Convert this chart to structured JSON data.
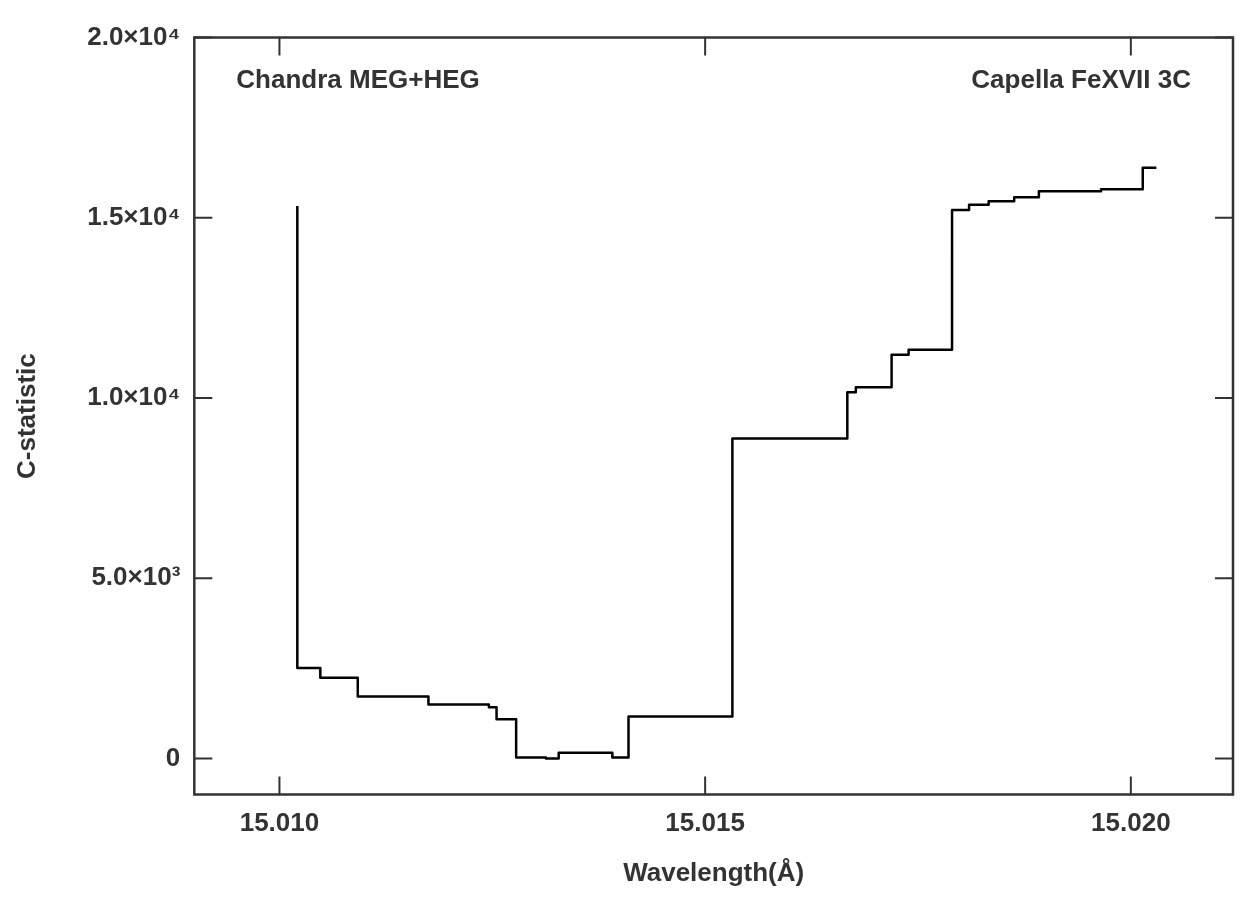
{
  "chart_data": {
    "type": "step",
    "xlabel": "Wavelength(Å)",
    "ylabel": "C-statistic",
    "annotations": [
      "Chandra MEG+HEG",
      "Capella FeXVII 3C"
    ],
    "x": [
      15.01021,
      15.01021,
      15.01048,
      15.01092,
      15.01175,
      15.01246,
      15.01255,
      15.01278,
      15.01313,
      15.01328,
      15.01391,
      15.0141,
      15.01532,
      15.01667,
      15.01677,
      15.01719,
      15.01739,
      15.0179,
      15.0181,
      15.01833,
      15.01863,
      15.01892,
      15.01965,
      15.02014,
      15.0203
    ],
    "series": [
      {
        "color": "#000000",
        "values": [
          15330,
          2510,
          2240,
          1720,
          1500,
          1420,
          1090,
          30,
          0,
          160,
          30,
          1170,
          8880,
          10160,
          10300,
          11200,
          11340,
          15220,
          15360,
          15460,
          15570,
          15740,
          15790,
          16390,
          16390
        ]
      }
    ],
    "xlim": [
      15.009,
      15.0212
    ],
    "xticks": [
      {
        "value": 15.01,
        "label": "15.010"
      },
      {
        "value": 15.015,
        "label": "15.015"
      },
      {
        "value": 15.02,
        "label": "15.020"
      }
    ],
    "ylim": [
      -1000,
      20000
    ],
    "yticks": [
      {
        "value": 0,
        "label": "0"
      },
      {
        "value": 5000,
        "label": "5.0×10³"
      },
      {
        "value": 10000,
        "label": "1.0×10⁴"
      },
      {
        "value": 15000,
        "label": "1.5×10⁴"
      },
      {
        "value": 20000,
        "label": "2.0×10⁴"
      }
    ],
    "grid": false,
    "legend": false,
    "line_style": "solid",
    "marker": "none"
  }
}
